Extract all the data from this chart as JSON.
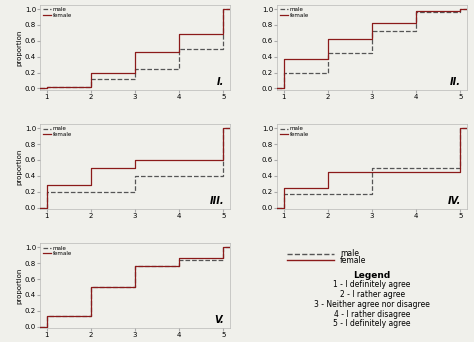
{
  "panels": [
    {
      "label": "I.",
      "male": [
        0.02,
        0.12,
        0.25,
        0.5,
        1.0
      ],
      "female": [
        0.02,
        0.2,
        0.46,
        0.68,
        1.0
      ]
    },
    {
      "label": "II.",
      "male": [
        0.2,
        0.45,
        0.72,
        0.96,
        1.0
      ],
      "female": [
        0.37,
        0.62,
        0.83,
        0.97,
        1.0
      ]
    },
    {
      "label": "III.",
      "male": [
        0.2,
        0.2,
        0.4,
        0.4,
        1.0
      ],
      "female": [
        0.28,
        0.5,
        0.6,
        0.6,
        1.0
      ]
    },
    {
      "label": "IV.",
      "male": [
        0.17,
        0.17,
        0.5,
        0.5,
        1.0
      ],
      "female": [
        0.25,
        0.45,
        0.45,
        0.45,
        1.0
      ]
    },
    {
      "label": "V.",
      "male": [
        0.13,
        0.5,
        0.76,
        0.84,
        1.0
      ],
      "female": [
        0.13,
        0.5,
        0.77,
        0.86,
        1.0
      ]
    }
  ],
  "male_color": "#555555",
  "female_color": "#8B1A1A",
  "male_linestyle": "--",
  "female_linestyle": "-",
  "ylabel": "proportion",
  "xlim": [
    0.85,
    5.15
  ],
  "ylim": [
    -0.02,
    1.05
  ],
  "xticks": [
    1,
    2,
    3,
    4,
    5
  ],
  "yticks": [
    0,
    0.2,
    0.4,
    0.6,
    0.8,
    1
  ],
  "bg_color": "#f0f0eb"
}
